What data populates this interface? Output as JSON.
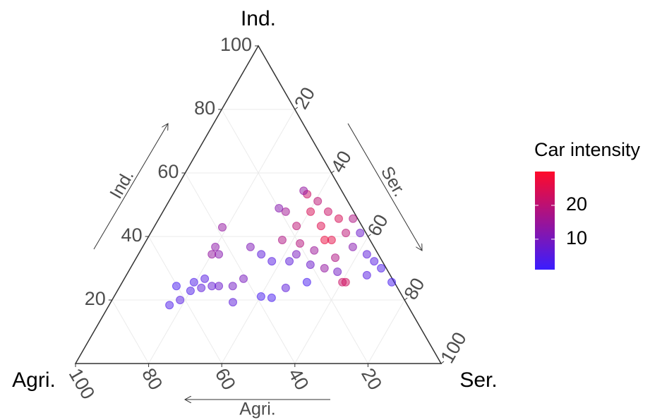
{
  "chart_data": {
    "type": "ternary",
    "grid": true,
    "axes": {
      "ind": {
        "title": "Ind.",
        "arrow_label": "Ind.",
        "ticks": [
          20,
          40,
          60,
          80,
          100
        ]
      },
      "ser": {
        "title": "Ser.",
        "arrow_label": "Ser.",
        "ticks": [
          20,
          40,
          60,
          80,
          100
        ]
      },
      "agri": {
        "title": "Agri.",
        "arrow_label": "Agri.",
        "ticks": [
          20,
          40,
          60,
          80,
          100
        ]
      }
    },
    "points": {
      "agri": [
        65.1,
        61.4,
        57.1,
        51.3,
        60.2,
        54.8,
        48.6,
        44.8,
        40.7,
        47.3,
        38.7,
        36,
        30.6,
        23.9,
        43.6,
        38.4,
        43.4,
        33.8,
        32,
        30.2,
        24,
        25.4,
        22.4,
        20.2,
        16.9,
        14.2,
        18.6,
        17.9,
        10,
        11.8,
        8.2,
        11.2,
        7,
        10.5,
        5.2,
        5.5,
        5.8,
        1.6,
        3.1,
        2.2,
        1.4,
        0.7,
        13.3,
        6.4,
        19.7,
        16.9,
        12.3,
        10.4,
        50.5,
        53.7,
        45.5,
        1.3,
        12.4,
        13.9,
        19.9
      ],
      "ind": [
        18.4,
        20,
        22.9,
        26.7,
        24.4,
        25.6,
        24.4,
        24.4,
        26.7,
        19.3,
        21.1,
        20.7,
        23.8,
        25.6,
        34.4,
        42.9,
        36.7,
        36.7,
        34.4,
        32.2,
        38.9,
        32.2,
        34.4,
        31.1,
        30,
        25.6,
        47.8,
        43.3,
        53.3,
        47.8,
        51.1,
        43.3,
        47.8,
        38.9,
        45.6,
        41.1,
        36.7,
        41.1,
        34.4,
        32.2,
        30,
        25.6,
        25.6,
        27.8,
        37.8,
        35.6,
        33.3,
        54.4,
        24.4,
        23.8,
        34.4,
        45.6,
        38.9,
        28.9,
        48.9
      ],
      "ser": [
        16.5,
        18.6,
        20,
        22,
        15.4,
        19.6,
        27,
        30.8,
        32.6,
        33.4,
        40.2,
        43.3,
        45.6,
        50.5,
        22,
        18.7,
        19.9,
        29.5,
        33.6,
        37.6,
        37.1,
        42.4,
        43.2,
        48.7,
        53.1,
        60.2,
        33.6,
        38.8,
        36.7,
        40.4,
        40.7,
        45.5,
        45.2,
        50.6,
        49.2,
        53.4,
        57.5,
        57.3,
        62.5,
        65.6,
        68.6,
        73.7,
        61.1,
        65.8,
        42.5,
        47.5,
        54.4,
        35.2,
        25.1,
        22.5,
        20.1,
        53.1,
        48.7,
        57.2,
        31.2
      ],
      "color_values": [
        4,
        5,
        4,
        5,
        3,
        4,
        8,
        9,
        10,
        6,
        3,
        3,
        6,
        3,
        12,
        14,
        13,
        11,
        6,
        5,
        18,
        6,
        10,
        8,
        14,
        22,
        16,
        20,
        22,
        24,
        20,
        25,
        22,
        26,
        24,
        20,
        12,
        8,
        6,
        5,
        4,
        3,
        23,
        5,
        19,
        15,
        18,
        14,
        7,
        6,
        14,
        18,
        27,
        9,
        12
      ]
    },
    "colorbar": {
      "title": "Car intensity",
      "lim": [
        1,
        30
      ],
      "ticks": [
        10,
        20
      ],
      "colors": [
        "#3a1dff",
        "#ff0a2a"
      ]
    }
  }
}
